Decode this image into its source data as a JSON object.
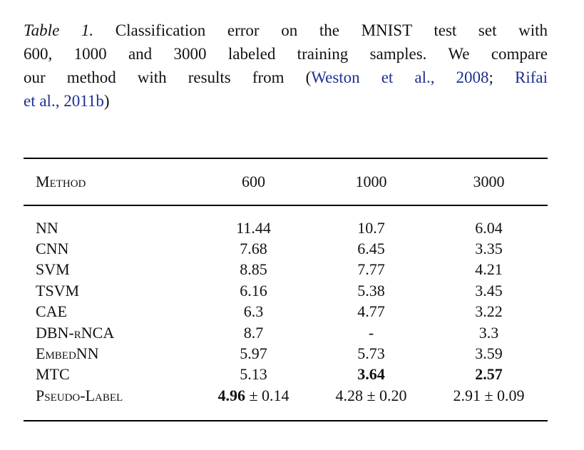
{
  "caption": {
    "lines": [
      {
        "segments": [
          {
            "text": "Table 1.",
            "style": "italic"
          },
          {
            "text": " Classification error on the MNIST test set with",
            "style": "normal"
          }
        ]
      },
      {
        "segments": [
          {
            "text": "600, 1000 and 3000 labeled training samples. We compare",
            "style": "normal"
          }
        ]
      },
      {
        "segments": [
          {
            "text": "our method with results from (",
            "style": "normal"
          },
          {
            "text": "Weston et al., 2008",
            "style": "cite"
          },
          {
            "text": "; ",
            "style": "normal"
          },
          {
            "text": "Rifai",
            "style": "cite"
          }
        ]
      },
      {
        "segments": [
          {
            "text": "et al., 2011b",
            "style": "cite"
          },
          {
            "text": ")",
            "style": "normal"
          }
        ]
      }
    ]
  },
  "table": {
    "columns": [
      "Method",
      "600",
      "1000",
      "3000"
    ],
    "rows": [
      {
        "method": "NN",
        "cells": [
          [
            {
              "t": "11.44"
            }
          ],
          [
            {
              "t": "10.7"
            }
          ],
          [
            {
              "t": "6.04"
            }
          ]
        ]
      },
      {
        "method": "CNN",
        "cells": [
          [
            {
              "t": "7.68"
            }
          ],
          [
            {
              "t": "6.45"
            }
          ],
          [
            {
              "t": "3.35"
            }
          ]
        ]
      },
      {
        "method": "SVM",
        "cells": [
          [
            {
              "t": "8.85"
            }
          ],
          [
            {
              "t": "7.77"
            }
          ],
          [
            {
              "t": "4.21"
            }
          ]
        ]
      },
      {
        "method": "TSVM",
        "cells": [
          [
            {
              "t": "6.16"
            }
          ],
          [
            {
              "t": "5.38"
            }
          ],
          [
            {
              "t": "3.45"
            }
          ]
        ]
      },
      {
        "method": "CAE",
        "cells": [
          [
            {
              "t": "6.3"
            }
          ],
          [
            {
              "t": "4.77"
            }
          ],
          [
            {
              "t": "3.22"
            }
          ]
        ]
      },
      {
        "method": "DBN-rNCA",
        "cells": [
          [
            {
              "t": "8.7"
            }
          ],
          [
            {
              "t": "-"
            }
          ],
          [
            {
              "t": "3.3"
            }
          ]
        ]
      },
      {
        "method": "EmbedNN",
        "cells": [
          [
            {
              "t": "5.97"
            }
          ],
          [
            {
              "t": "5.73"
            }
          ],
          [
            {
              "t": "3.59"
            }
          ]
        ]
      },
      {
        "method": "MTC",
        "cells": [
          [
            {
              "t": "5.13"
            }
          ],
          [
            {
              "t": "3.64",
              "b": true
            }
          ],
          [
            {
              "t": "2.57",
              "b": true
            }
          ]
        ]
      },
      {
        "method": "Pseudo-Label",
        "cells": [
          [
            {
              "t": "4.96",
              "b": true
            },
            {
              "t": " ± 0.14"
            }
          ],
          [
            {
              "t": "4.28 ± 0.20"
            }
          ],
          [
            {
              "t": "2.91 ± 0.09"
            }
          ]
        ]
      }
    ]
  },
  "chart_data": {
    "type": "table",
    "title": "Classification error on the MNIST test set with 600, 1000 and 3000 labeled training samples",
    "columns": [
      "Method",
      "600",
      "1000",
      "3000"
    ],
    "rows": [
      [
        "NN",
        "11.44",
        "10.7",
        "6.04"
      ],
      [
        "CNN",
        "7.68",
        "6.45",
        "3.35"
      ],
      [
        "SVM",
        "8.85",
        "7.77",
        "4.21"
      ],
      [
        "TSVM",
        "6.16",
        "5.38",
        "3.45"
      ],
      [
        "CAE",
        "6.3",
        "4.77",
        "3.22"
      ],
      [
        "DBN-rNCA",
        "8.7",
        "-",
        "3.3"
      ],
      [
        "EmbedNN",
        "5.97",
        "5.73",
        "3.59"
      ],
      [
        "MTC",
        "5.13",
        "3.64",
        "2.57"
      ],
      [
        "Pseudo-Label",
        "4.96 ± 0.14",
        "4.28 ± 0.20",
        "2.91 ± 0.09"
      ]
    ]
  },
  "colors": {
    "citation_blue": "#1e3093",
    "text": "#121212",
    "rule": "#000000",
    "background": "#ffffff"
  }
}
